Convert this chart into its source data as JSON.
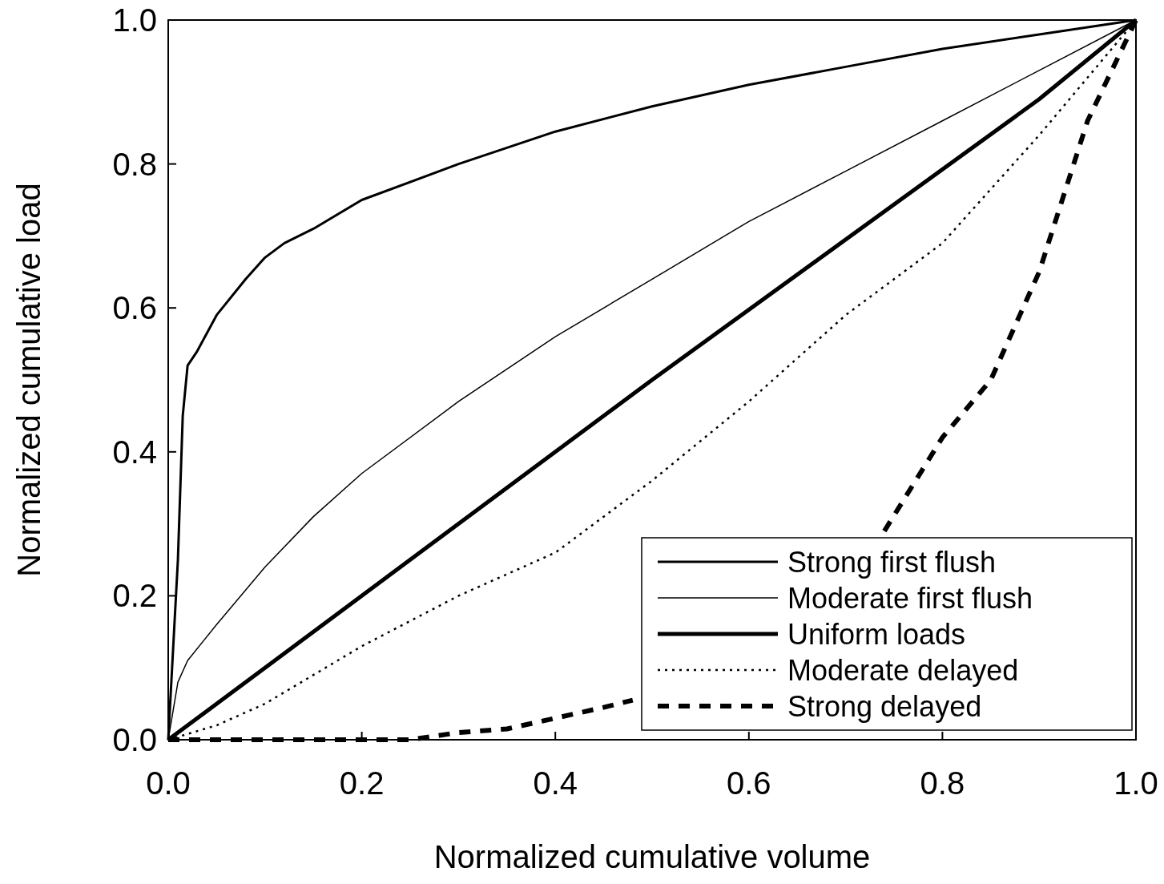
{
  "chart_data": {
    "type": "line",
    "xlabel": "Normalized cumulative volume",
    "ylabel": "Normalized cumulative load",
    "xlim": [
      0,
      1
    ],
    "ylim": [
      0,
      1
    ],
    "xticks": [
      {
        "value": 0,
        "label": "0.0"
      },
      {
        "value": 0.2,
        "label": "0.2"
      },
      {
        "value": 0.4,
        "label": "0.4"
      },
      {
        "value": 0.6,
        "label": "0.6"
      },
      {
        "value": 0.8,
        "label": "0.8"
      },
      {
        "value": 1,
        "label": "1.0"
      }
    ],
    "yticks": [
      {
        "value": 0,
        "label": "0.0"
      },
      {
        "value": 0.2,
        "label": "0.2"
      },
      {
        "value": 0.4,
        "label": "0.4"
      },
      {
        "value": 0.6,
        "label": "0.6"
      },
      {
        "value": 0.8,
        "label": "0.8"
      },
      {
        "value": 1,
        "label": "1.0"
      }
    ],
    "grid": false,
    "legend": "bottom right",
    "series": [
      {
        "name": "Strong first flush",
        "color": "#000000",
        "line_style": "solid",
        "x": [
          0,
          0.01,
          0.015,
          0.02,
          0.03,
          0.05,
          0.08,
          0.1,
          0.12,
          0.15,
          0.2,
          0.3,
          0.4,
          0.5,
          0.6,
          0.7,
          0.8,
          0.9,
          1
        ],
        "values": [
          0,
          0.25,
          0.45,
          0.52,
          0.54,
          0.59,
          0.64,
          0.67,
          0.69,
          0.71,
          0.75,
          0.8,
          0.845,
          0.88,
          0.91,
          0.935,
          0.96,
          0.98,
          1
        ]
      },
      {
        "name": "Moderate first flush",
        "color": "#000000",
        "line_style": "solid",
        "x": [
          0,
          0.01,
          0.02,
          0.05,
          0.1,
          0.15,
          0.2,
          0.3,
          0.4,
          0.5,
          0.6,
          0.7,
          0.8,
          0.9,
          1
        ],
        "values": [
          0,
          0.08,
          0.11,
          0.16,
          0.24,
          0.31,
          0.37,
          0.47,
          0.56,
          0.64,
          0.72,
          0.79,
          0.86,
          0.93,
          1
        ]
      },
      {
        "name": "Uniform loads",
        "color": "#000000",
        "line_style": "solid",
        "x": [
          0,
          0.5,
          0.9,
          1
        ],
        "values": [
          0,
          0.5,
          0.89,
          1
        ]
      },
      {
        "name": "Moderate delayed",
        "color": "#000000",
        "line_style": "dotted",
        "x": [
          0,
          0.05,
          0.1,
          0.2,
          0.3,
          0.4,
          0.5,
          0.6,
          0.7,
          0.8,
          0.9,
          1
        ],
        "values": [
          0,
          0.02,
          0.05,
          0.13,
          0.2,
          0.26,
          0.36,
          0.47,
          0.59,
          0.69,
          0.84,
          1
        ]
      },
      {
        "name": "Strong delayed",
        "color": "#000000",
        "line_style": "dashed",
        "x": [
          0,
          0.25,
          0.3,
          0.35,
          0.4,
          0.45,
          0.48,
          0.6,
          0.74,
          0.8,
          0.85,
          0.9,
          0.95,
          1
        ],
        "values": [
          0,
          0,
          0.01,
          0.015,
          0.03,
          0.045,
          0.055,
          null,
          0.29,
          0.42,
          0.5,
          0.65,
          0.86,
          1
        ]
      }
    ]
  }
}
